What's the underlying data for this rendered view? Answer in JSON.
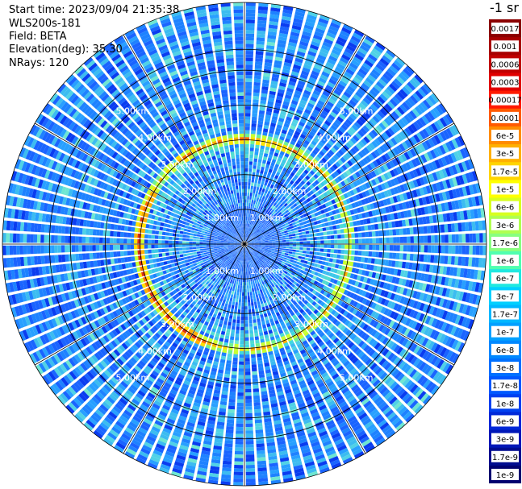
{
  "header": {
    "start_time": "Start time: 2023/09/04 21:35:38",
    "instrument": "WLS200s-181",
    "field": "Field: BETA",
    "elevation": "Elevation(deg): 35.30",
    "nrays": "NRays: 120"
  },
  "colorbar": {
    "title": "-1 sr",
    "labels": [
      "0.0017",
      "0.001",
      "0.0006",
      "0.0003",
      "0.00017",
      "0.0001",
      "6e-5",
      "3e-5",
      "1.7e-5",
      "1e-5",
      "6e-6",
      "3e-6",
      "1.7e-6",
      "1e-6",
      "6e-7",
      "3e-7",
      "1.7e-7",
      "1e-7",
      "6e-8",
      "3e-8",
      "1.7e-8",
      "1e-8",
      "6e-9",
      "3e-9",
      "1.7e-9",
      "1e-9"
    ],
    "colors": [
      "#8b0000",
      "#a80000",
      "#c00000",
      "#e00000",
      "#ff1a00",
      "#ff5a00",
      "#ff8c00",
      "#ffb000",
      "#ffd400",
      "#ffff00",
      "#d8ff20",
      "#b0ff50",
      "#88ff80",
      "#50ffb0",
      "#20e8e0",
      "#00d0ff",
      "#00b8ff",
      "#00a0ff",
      "#0088ff",
      "#0070ff",
      "#0058ff",
      "#0040f0",
      "#0028d8",
      "#0018b8",
      "#000c90",
      "#000070"
    ]
  },
  "chart_data": {
    "type": "heatmap",
    "projection": "polar PPI",
    "rays": 120,
    "range_rings": [
      {
        "range": 1.0,
        "label": "1.00km"
      },
      {
        "range": 2.0,
        "label": "2.00km"
      },
      {
        "range": 3.0,
        "label": "3.00km"
      },
      {
        "range": 4.0,
        "label": "4.00km"
      },
      {
        "range": 5.0,
        "label": "5.00km"
      }
    ],
    "max_range": 6.95,
    "spokes_deg": [
      0,
      30,
      60,
      90,
      120,
      150,
      180,
      210,
      240,
      270,
      300,
      330
    ],
    "high_return_ring_range": 3.05
  }
}
